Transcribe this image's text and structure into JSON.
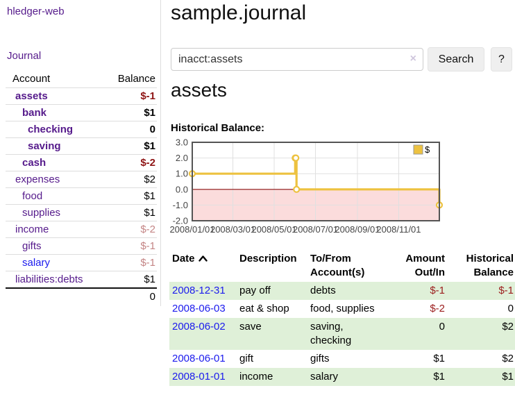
{
  "app": {
    "brand": "hledger-web"
  },
  "sidebar": {
    "journal_link": "Journal",
    "accounts": {
      "col_account": "Account",
      "col_balance": "Balance",
      "rows": [
        {
          "name": "assets",
          "balance": "$-1",
          "indent": 0,
          "bold": true,
          "balance_class": "neg",
          "link_class": "purple"
        },
        {
          "name": "bank",
          "balance": "$1",
          "indent": 1,
          "bold": true,
          "balance_class": "pos",
          "link_class": "purple"
        },
        {
          "name": "checking",
          "balance": "0",
          "indent": 2,
          "bold": true,
          "balance_class": "pos",
          "link_class": "purple"
        },
        {
          "name": "saving",
          "balance": "$1",
          "indent": 2,
          "bold": true,
          "balance_class": "pos",
          "link_class": "purple"
        },
        {
          "name": "cash",
          "balance": "$-2",
          "indent": 1,
          "bold": true,
          "balance_class": "neg",
          "link_class": "purple"
        },
        {
          "name": "expenses",
          "balance": "$2",
          "indent": 0,
          "bold": false,
          "balance_class": "pos",
          "link_class": "purple"
        },
        {
          "name": "food",
          "balance": "$1",
          "indent": 1,
          "bold": false,
          "balance_class": "pos",
          "link_class": "purple"
        },
        {
          "name": "supplies",
          "balance": "$1",
          "indent": 1,
          "bold": false,
          "balance_class": "pos",
          "link_class": "purple"
        },
        {
          "name": "income",
          "balance": "$-2",
          "indent": 0,
          "bold": false,
          "balance_class": "neg-light",
          "link_class": "purple"
        },
        {
          "name": "gifts",
          "balance": "$-1",
          "indent": 1,
          "bold": false,
          "balance_class": "neg-light",
          "link_class": "purple"
        },
        {
          "name": "salary",
          "balance": "$-1",
          "indent": 1,
          "bold": false,
          "balance_class": "neg-light",
          "link_class": "blue"
        },
        {
          "name": "liabilities:debts",
          "balance": "$1",
          "indent": 0,
          "bold": false,
          "balance_class": "pos",
          "link_class": "purple"
        }
      ],
      "total": "0"
    }
  },
  "main": {
    "title": "sample.journal",
    "search": {
      "value": "inacct:assets",
      "clear_label": "×",
      "search_button": "Search",
      "help_button": "?"
    },
    "heading": "assets",
    "chart_label": "Historical Balance:",
    "register": {
      "columns": [
        "Date",
        "Description",
        "To/From Account(s)",
        "Amount Out/In",
        "Historical Balance"
      ],
      "rows": [
        {
          "date": "2008-12-31",
          "description": "pay off",
          "accounts": "debts",
          "amount": "$-1",
          "amount_neg": true,
          "balance": "$-1",
          "balance_neg": true
        },
        {
          "date": "2008-06-03",
          "description": "eat & shop",
          "accounts": "food, supplies",
          "amount": "$-2",
          "amount_neg": true,
          "balance": "0",
          "balance_neg": false
        },
        {
          "date": "2008-06-02",
          "description": "save",
          "accounts": "saving, checking",
          "amount": "0",
          "amount_neg": false,
          "balance": "$2",
          "balance_neg": false
        },
        {
          "date": "2008-06-01",
          "description": "gift",
          "accounts": "gifts",
          "amount": "$1",
          "amount_neg": false,
          "balance": "$2",
          "balance_neg": false
        },
        {
          "date": "2008-01-01",
          "description": "income",
          "accounts": "salary",
          "amount": "$1",
          "amount_neg": false,
          "balance": "$1",
          "balance_neg": false
        }
      ]
    }
  },
  "chart_data": {
    "type": "line",
    "step": true,
    "title": "Historical Balance",
    "series": [
      {
        "name": "$",
        "color": "#edc240",
        "points": [
          [
            "2008-01-01",
            1
          ],
          [
            "2008-06-01",
            2
          ],
          [
            "2008-06-02",
            2
          ],
          [
            "2008-06-03",
            0
          ],
          [
            "2008-12-31",
            -1
          ]
        ]
      }
    ],
    "x_range": [
      "2008-01-01",
      "2008-12-31"
    ],
    "ylim": [
      -2,
      3
    ],
    "yticks": [
      3.0,
      2.0,
      1.0,
      0.0,
      -1.0,
      -2.0
    ],
    "xticks": [
      {
        "date": "2008-01-01",
        "label": "2008/01/01"
      },
      {
        "date": "2008-03-01",
        "label": "2008/03/01"
      },
      {
        "date": "2008-05-01",
        "label": "2008/05/01"
      },
      {
        "date": "2008-07-01",
        "label": "2008/07/01"
      },
      {
        "date": "2008-09-01",
        "label": "2008/09/01"
      },
      {
        "date": "2008-11-01",
        "label": "2008/11/01"
      }
    ],
    "grid": true,
    "legend": {
      "position": "top-right",
      "label": "$"
    },
    "negative_region_fill": "#fbdcdc",
    "zero_line_color": "#8b1010",
    "grid_line_color": "#e0e0e0",
    "border_color": "#545454",
    "tick_label_color": "#444444"
  },
  "colors": {
    "visited_link_purple": "#551a8b",
    "link_blue": "#1b1aee",
    "negative_strong": "#8e1414",
    "negative_light": "#c48585",
    "register_negative": "#9b1c1c",
    "row_stripe_green": "#dff0d8",
    "series_gold": "#edc240"
  }
}
